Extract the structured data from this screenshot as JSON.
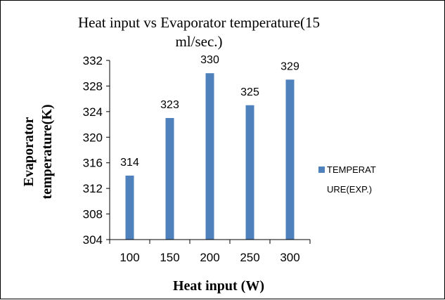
{
  "chart_data": {
    "type": "bar",
    "title_lines": [
      "Heat input vs Evaporator temperature(15",
      "ml/sec.)"
    ],
    "xlabel": "Heat input (W)",
    "ylabel_lines": [
      "Evaporator",
      "temperature(K)"
    ],
    "categories": [
      "100",
      "150",
      "200",
      "250",
      "300"
    ],
    "series": [
      {
        "name_lines": [
          "TEMPERAT",
          "URE(EXP.)"
        ],
        "values": [
          314,
          323,
          330,
          325,
          329
        ],
        "color": "#4f81bd"
      }
    ],
    "data_labels": [
      "314",
      "323",
      "330",
      "325",
      "329"
    ],
    "ylim": [
      304,
      332
    ],
    "yticks": [
      "304",
      "308",
      "312",
      "316",
      "320",
      "324",
      "328",
      "332"
    ],
    "grid": false,
    "legend_position": "right"
  }
}
